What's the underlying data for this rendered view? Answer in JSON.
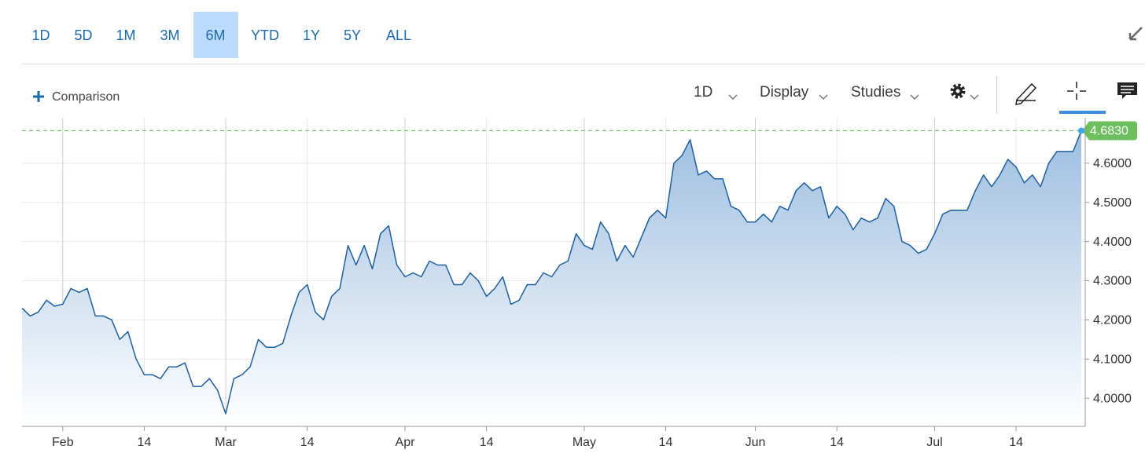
{
  "ui": {
    "ranges": [
      "1D",
      "5D",
      "1M",
      "3M",
      "6M",
      "YTD",
      "1Y",
      "5Y",
      "ALL"
    ],
    "active_range": "6M",
    "toolbar": {
      "comparison": "Comparison",
      "interval": "1D",
      "display": "Display",
      "studies": "Studies"
    }
  },
  "chart_data": {
    "type": "area",
    "categories": [
      null,
      null,
      null,
      null,
      null,
      "Feb",
      null,
      null,
      null,
      null,
      null,
      null,
      null,
      null,
      null,
      "14",
      null,
      null,
      null,
      null,
      null,
      null,
      null,
      null,
      null,
      "Mar",
      null,
      null,
      null,
      null,
      null,
      null,
      null,
      null,
      null,
      "14",
      null,
      null,
      null,
      null,
      null,
      null,
      null,
      null,
      null,
      null,
      null,
      "Apr",
      null,
      null,
      null,
      null,
      null,
      null,
      null,
      null,
      null,
      "14",
      null,
      null,
      null,
      null,
      null,
      null,
      null,
      null,
      null,
      null,
      null,
      "May",
      null,
      null,
      null,
      null,
      null,
      null,
      null,
      null,
      null,
      "14",
      null,
      null,
      null,
      null,
      null,
      null,
      null,
      null,
      null,
      null,
      "Jun",
      null,
      null,
      null,
      null,
      null,
      null,
      null,
      null,
      null,
      "14",
      null,
      null,
      null,
      null,
      null,
      null,
      null,
      null,
      null,
      null,
      null,
      "Jul",
      null,
      null,
      null,
      null,
      null,
      null,
      null,
      null,
      null,
      "14",
      null,
      null,
      null,
      null,
      null,
      null,
      null,
      null
    ],
    "values": [
      4.23,
      4.21,
      4.22,
      4.25,
      4.235,
      4.24,
      4.28,
      4.27,
      4.28,
      4.21,
      4.21,
      4.2,
      4.15,
      4.17,
      4.1,
      4.06,
      4.06,
      4.05,
      4.08,
      4.08,
      4.09,
      4.03,
      4.03,
      4.05,
      4.02,
      3.96,
      4.05,
      4.06,
      4.08,
      4.15,
      4.13,
      4.13,
      4.14,
      4.21,
      4.27,
      4.29,
      4.22,
      4.2,
      4.26,
      4.28,
      4.39,
      4.34,
      4.39,
      4.33,
      4.42,
      4.44,
      4.34,
      4.31,
      4.32,
      4.31,
      4.35,
      4.34,
      4.34,
      4.29,
      4.29,
      4.32,
      4.3,
      4.26,
      4.28,
      4.31,
      4.24,
      4.25,
      4.29,
      4.29,
      4.32,
      4.31,
      4.34,
      4.35,
      4.42,
      4.39,
      4.38,
      4.45,
      4.42,
      4.35,
      4.39,
      4.36,
      4.41,
      4.46,
      4.48,
      4.46,
      4.6,
      4.62,
      4.66,
      4.57,
      4.58,
      4.56,
      4.56,
      4.49,
      4.48,
      4.45,
      4.45,
      4.47,
      4.45,
      4.49,
      4.48,
      4.53,
      4.55,
      4.53,
      4.54,
      4.46,
      4.49,
      4.47,
      4.43,
      4.46,
      4.45,
      4.46,
      4.51,
      4.49,
      4.4,
      4.39,
      4.37,
      4.38,
      4.42,
      4.47,
      4.48,
      4.48,
      4.48,
      4.53,
      4.57,
      4.54,
      4.57,
      4.61,
      4.59,
      4.55,
      4.57,
      4.54,
      4.6,
      4.63,
      4.63,
      4.63,
      4.683
    ],
    "color": "#1f5f9e",
    "ylim": [
      3.928,
      4.716
    ],
    "yticks": [
      {
        "value": 4.0,
        "label": "4.0000"
      },
      {
        "value": 4.1,
        "label": "4.1000"
      },
      {
        "value": 4.2,
        "label": "4.2000"
      },
      {
        "value": 4.3,
        "label": "4.3000"
      },
      {
        "value": 4.4,
        "label": "4.4000"
      },
      {
        "value": 4.5,
        "label": "4.5000"
      },
      {
        "value": 4.6,
        "label": "4.6000"
      }
    ],
    "reference_line": {
      "value": 4.683,
      "label": "4.6830",
      "color": "#6cbf5c"
    },
    "grid": true
  }
}
